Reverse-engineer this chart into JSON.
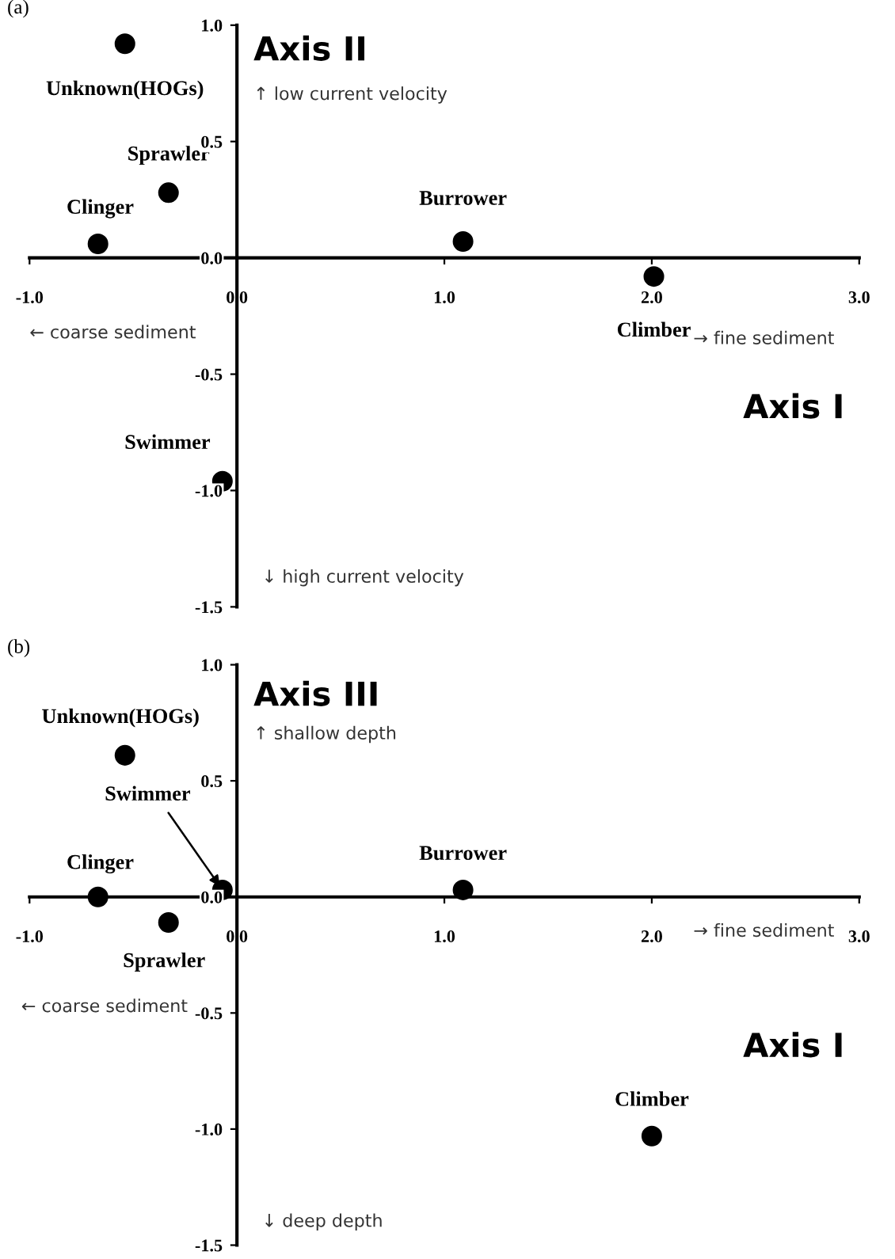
{
  "chart_data": [
    {
      "type": "scatter",
      "title": "(a)",
      "xlabel": "Axis I",
      "ylabel": "Axis II",
      "color": "#000000",
      "marker": "circle",
      "x": [
        -0.54,
        -0.33,
        -0.67,
        1.09,
        2.01,
        -0.07
      ],
      "values": [
        0.92,
        0.28,
        0.06,
        0.07,
        -0.08,
        -0.96
      ],
      "xlim": [
        -1,
        3
      ],
      "ylim": [
        -1.5,
        1
      ],
      "xticks": [
        {
          "value": -1,
          "label": "-1.0"
        },
        {
          "value": 0,
          "label": "0.0"
        },
        {
          "value": 1,
          "label": "1.0"
        },
        {
          "value": 2,
          "label": "2.0"
        },
        {
          "value": 3,
          "label": "3.0"
        }
      ],
      "yticks": [
        {
          "value": -1.5,
          "label": "-1.5"
        },
        {
          "value": -1,
          "label": "-1.0"
        },
        {
          "value": -0.5,
          "label": "-0.5"
        },
        {
          "value": 0,
          "label": "0.0"
        },
        {
          "value": 0.5,
          "label": "0.5"
        },
        {
          "value": 1,
          "label": "1.0"
        }
      ],
      "annotations": [
        {
          "text": "Unknown(HOGs)",
          "x": -0.54,
          "y": 0.92
        },
        {
          "text": "Sprawler",
          "x": -0.33,
          "y": 0.28
        },
        {
          "text": "Clinger",
          "x": -0.67,
          "y": 0.06
        },
        {
          "text": "Burrower",
          "x": 1.09,
          "y": 0.07
        },
        {
          "text": "Climber",
          "x": 2.01,
          "y": -0.08
        },
        {
          "text": "Swimmer",
          "x": -0.07,
          "y": -0.96
        },
        "↑ low current velocity",
        "← coarse sediment",
        "→ fine sediment",
        "↓ high current velocity"
      ]
    },
    {
      "type": "scatter",
      "title": "(b)",
      "xlabel": "Axis I",
      "ylabel": "Axis III",
      "color": "#000000",
      "marker": "circle",
      "x": [
        -0.54,
        -0.33,
        -0.67,
        1.09,
        2.0,
        -0.07
      ],
      "values": [
        0.61,
        -0.11,
        0.0,
        0.03,
        -1.03,
        0.03
      ],
      "xlim": [
        -1,
        3
      ],
      "ylim": [
        -1.5,
        1
      ],
      "xticks": [
        {
          "value": -1,
          "label": "-1.0"
        },
        {
          "value": 0,
          "label": "0.0"
        },
        {
          "value": 1,
          "label": "1.0"
        },
        {
          "value": 2,
          "label": "2.0"
        },
        {
          "value": 3,
          "label": "3.0"
        }
      ],
      "yticks": [
        {
          "value": -1.5,
          "label": "-1.5"
        },
        {
          "value": -1,
          "label": "-1.0"
        },
        {
          "value": -0.5,
          "label": "-0.5"
        },
        {
          "value": 0,
          "label": "0.0"
        },
        {
          "value": 0.5,
          "label": "0.5"
        },
        {
          "value": 1,
          "label": "1.0"
        }
      ],
      "annotations": [
        {
          "text": "Unknown(HOGs)",
          "x": -0.54,
          "y": 0.61
        },
        {
          "text": "Sprawler",
          "x": -0.33,
          "y": -0.11
        },
        {
          "text": "Clinger",
          "x": -0.67,
          "y": 0.0
        },
        {
          "text": "Burrower",
          "x": 1.09,
          "y": 0.03
        },
        {
          "text": "Climber",
          "x": 2.0,
          "y": -1.03
        },
        {
          "text": "Swimmer",
          "x": -0.07,
          "y": 0.03
        },
        "↑ shallow depth",
        "← coarse sediment",
        "→ fine sediment",
        "↓ deep depth"
      ]
    }
  ]
}
